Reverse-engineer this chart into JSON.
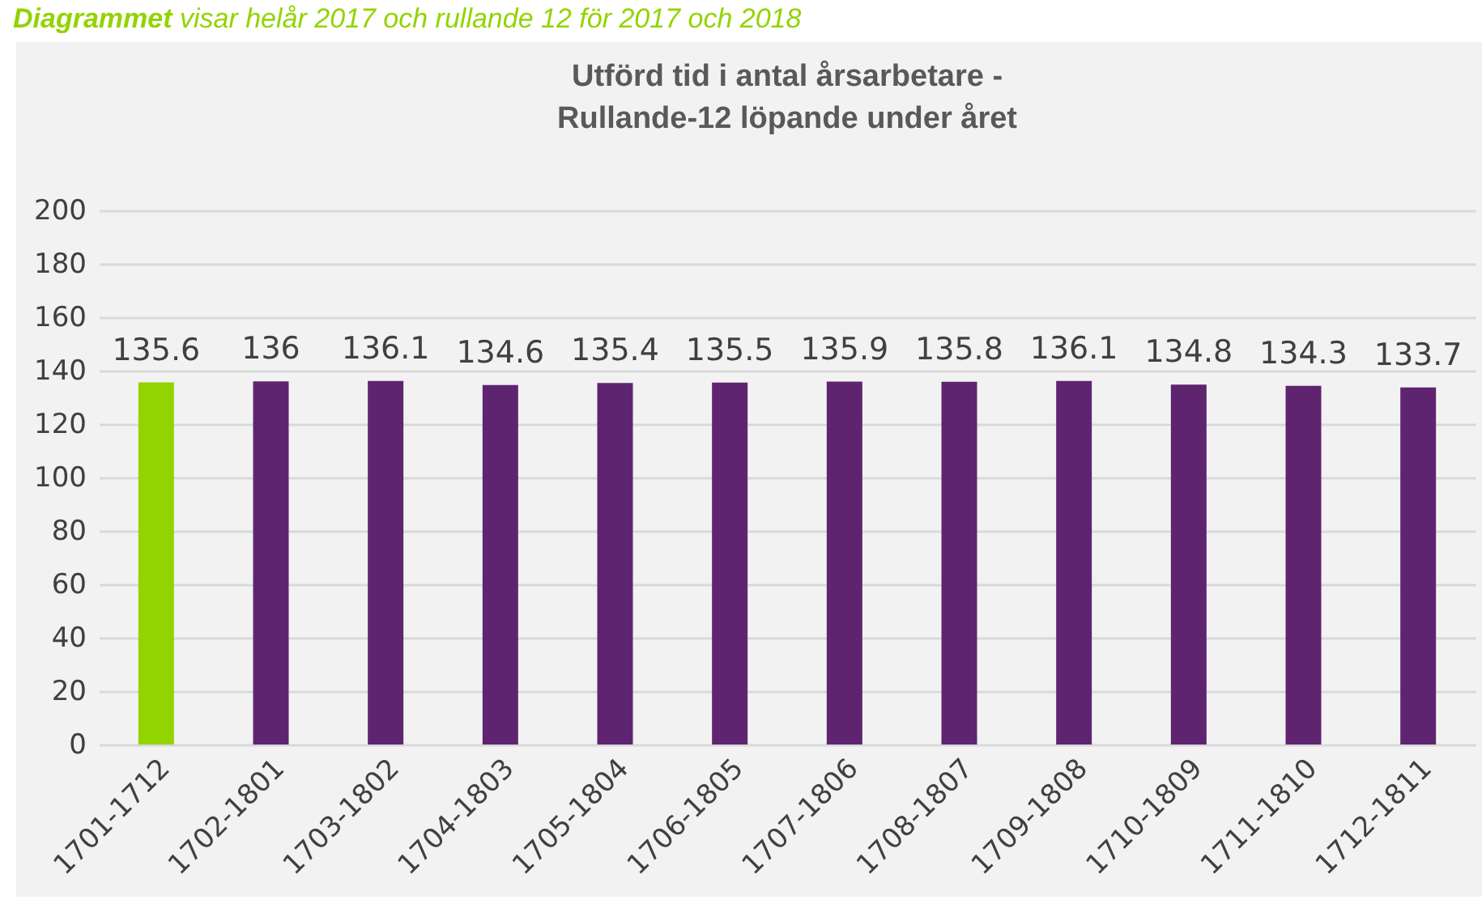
{
  "chart_data": {
    "type": "bar",
    "title": [
      "Utförd tid i antal årsarbetare -",
      "Rullande-12 löpande under året"
    ],
    "annotations": [
      "Diagrammet visar helår 2017 och rullande 12 för 2017 och 2018"
    ],
    "categories": [
      "1701-1712",
      "1702-1801",
      "1703-1802",
      "1704-1803",
      "1705-1804",
      "1706-1805",
      "1707-1806",
      "1708-1807",
      "1709-1808",
      "1710-1809",
      "1711-1810",
      "1712-1811"
    ],
    "values": [
      135.6,
      136,
      136.1,
      134.6,
      135.4,
      135.5,
      135.9,
      135.8,
      136.1,
      134.8,
      134.3,
      133.7
    ],
    "colors": [
      "#92d400",
      "#5f2470",
      "#5f2470",
      "#5f2470",
      "#5f2470",
      "#5f2470",
      "#5f2470",
      "#5f2470",
      "#5f2470",
      "#5f2470",
      "#5f2470",
      "#5f2470"
    ],
    "ylim": [
      0,
      200
    ],
    "yticks": [
      0,
      20,
      40,
      60,
      80,
      100,
      120,
      140,
      160,
      180,
      200
    ],
    "grid": "y",
    "data_labels": true
  }
}
